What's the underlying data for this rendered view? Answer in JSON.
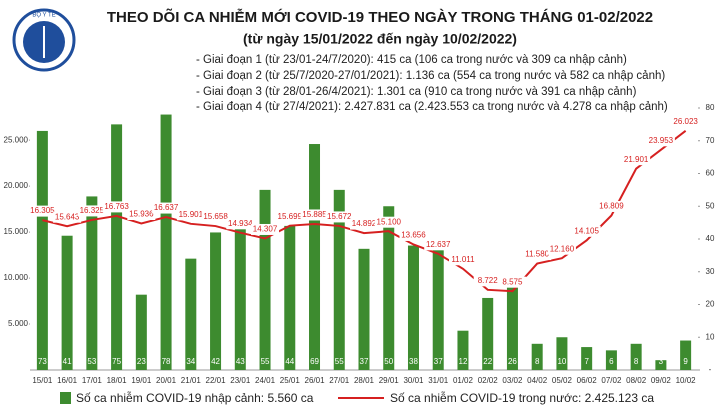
{
  "chart_data": {
    "type": "combo",
    "title": "THEO DÕI CA NHIỄM MỚI COVID-19 THEO NGÀY TRONG THÁNG 01-02/2022",
    "subtitle": "(từ ngày 15/01/2022 đến ngày 10/02/2022)",
    "logo_text": "BỘ Y TẾ",
    "annotations": [
      "- Giai đoạn 1 (từ 23/01-24/7/2020): 415 ca (106 ca trong nước và 309 ca nhập cảnh)",
      "- Giai đoạn 2 (từ 25/7/2020-27/01/2021): 1.136 ca (554 ca trong nước và 582 ca nhập cảnh)",
      "- Giai đoạn 3 (từ 28/01-26/4/2021): 1.301 ca (910 ca trong nước và 391 ca nhập cảnh)",
      "- Giai đoạn 4 (từ 27/4/2021): 2.427.831 ca (2.423.553 ca trong nước và 4.278 ca nhập cảnh)"
    ],
    "categories": [
      "15/01",
      "16/01",
      "17/01",
      "18/01",
      "19/01",
      "20/01",
      "21/01",
      "22/01",
      "23/01",
      "24/01",
      "25/01",
      "26/01",
      "27/01",
      "28/01",
      "29/01",
      "30/01",
      "31/01",
      "01/02",
      "02/02",
      "03/02",
      "04/02",
      "05/02",
      "06/02",
      "07/02",
      "08/02",
      "09/02",
      "10/02"
    ],
    "series": [
      {
        "name": "Số ca nhiễm COVID-19 nhập cảnh: 5.560 ca",
        "type": "bar",
        "axis": "y2",
        "color": "#3d8b2f",
        "values": [
          73,
          41,
          53,
          75,
          23,
          78,
          34,
          42,
          43,
          55,
          44,
          69,
          55,
          37,
          50,
          38,
          37,
          12,
          22,
          26,
          8,
          10,
          7,
          6,
          8,
          3,
          9
        ]
      },
      {
        "name": "Số ca nhiễm COVID-19 trong nước: 2.425.123 ca",
        "type": "line",
        "color": "#d62020",
        "values": [
          16305,
          15643,
          16325,
          16763,
          15936,
          16637,
          15901,
          15658,
          14934,
          14307,
          15699,
          15885,
          15672,
          14892,
          15100,
          13656,
          12637,
          11011,
          8722,
          8575,
          11580,
          12160,
          14105,
          16809,
          21901,
          23953,
          26023
        ],
        "value_labels": [
          "16.305",
          "15.643",
          "16.325",
          "16.763",
          "15.936",
          "16.637",
          "15.901",
          "15.658",
          "14.934",
          "14.307",
          "15.699",
          "15.885",
          "15.672",
          "14.892",
          "15.100",
          "13.656",
          "12.637",
          "11.011",
          "8.722",
          "8.575",
          "11.580",
          "12.160",
          "14.105",
          "16.809",
          "21.901",
          "23.953",
          "26.023"
        ]
      }
    ],
    "ylim": [
      0,
      28500
    ],
    "yticks": [
      {
        "value": 5000,
        "label": "5.000"
      },
      {
        "value": 10000,
        "label": "10.000"
      },
      {
        "value": 15000,
        "label": "15.000"
      },
      {
        "value": 20000,
        "label": "20.000"
      },
      {
        "value": 25000,
        "label": "25.000"
      }
    ],
    "y2lim": [
      0,
      80
    ],
    "y2ticks": [
      {
        "value": 0,
        "label": "-"
      },
      10,
      20,
      30,
      40,
      50,
      60,
      70,
      80
    ]
  }
}
